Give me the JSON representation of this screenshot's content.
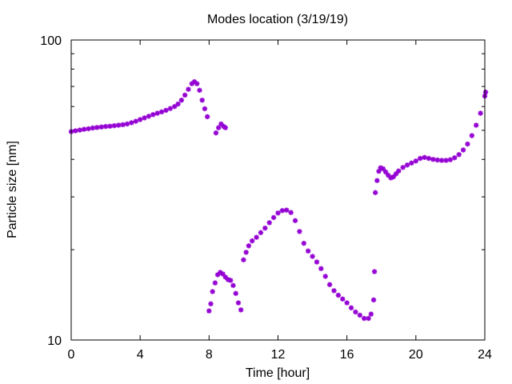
{
  "chart_data": {
    "type": "scatter",
    "title": "Modes location (3/19/19)",
    "xlabel": "Time [hour]",
    "ylabel": "Particle size [nm]",
    "xlim": [
      0,
      24
    ],
    "ylim": [
      10,
      100
    ],
    "yscale": "log",
    "xticks": [
      0,
      4,
      8,
      12,
      16,
      20,
      24
    ],
    "xtick_labels": [
      "0",
      "4",
      "8",
      "12",
      "16",
      "20",
      "24"
    ],
    "yticks": [
      10,
      100
    ],
    "ytick_labels": [
      "10",
      "100"
    ],
    "grid": false,
    "legend": "none",
    "marker_color": "#9400d3",
    "series": [
      {
        "points": [
          [
            0.0,
            49.5
          ],
          [
            0.25,
            49.8
          ],
          [
            0.5,
            50.1
          ],
          [
            0.75,
            50.4
          ],
          [
            1.0,
            50.6
          ],
          [
            1.25,
            50.9
          ],
          [
            1.5,
            51.1
          ],
          [
            1.75,
            51.3
          ],
          [
            2.0,
            51.5
          ],
          [
            2.25,
            51.6
          ],
          [
            2.5,
            51.8
          ],
          [
            2.75,
            52.0
          ],
          [
            3.0,
            52.2
          ],
          [
            3.25,
            52.5
          ],
          [
            3.5,
            53.0
          ],
          [
            3.75,
            53.6
          ],
          [
            4.0,
            54.3
          ],
          [
            4.25,
            55.0
          ],
          [
            4.5,
            55.7
          ],
          [
            4.75,
            56.4
          ],
          [
            5.0,
            57.0
          ],
          [
            5.25,
            57.6
          ],
          [
            5.5,
            58.3
          ],
          [
            5.75,
            59.1
          ],
          [
            6.0,
            60.0
          ],
          [
            6.2,
            61.2
          ],
          [
            6.4,
            63.0
          ],
          [
            6.6,
            65.5
          ],
          [
            6.8,
            68.5
          ],
          [
            7.0,
            71.5
          ],
          [
            7.15,
            72.6
          ],
          [
            7.3,
            71.5
          ],
          [
            7.45,
            68.0
          ],
          [
            7.6,
            63.0
          ],
          [
            7.75,
            59.0
          ],
          [
            7.9,
            55.5
          ],
          [
            8.4,
            49.0
          ],
          [
            8.55,
            51.0
          ],
          [
            8.7,
            52.5
          ],
          [
            8.85,
            51.5
          ],
          [
            8.95,
            51.0
          ],
          [
            8.0,
            12.5
          ],
          [
            8.1,
            13.2
          ],
          [
            8.2,
            14.5
          ],
          [
            8.35,
            15.5
          ],
          [
            8.5,
            16.5
          ],
          [
            8.65,
            16.8
          ],
          [
            8.8,
            16.6
          ],
          [
            8.95,
            16.2
          ],
          [
            9.1,
            15.9
          ],
          [
            9.25,
            15.8
          ],
          [
            9.4,
            15.2
          ],
          [
            9.55,
            14.3
          ],
          [
            9.7,
            13.3
          ],
          [
            9.85,
            12.6
          ],
          [
            10.0,
            18.5
          ],
          [
            10.15,
            19.6
          ],
          [
            10.3,
            20.6
          ],
          [
            10.5,
            21.4
          ],
          [
            10.75,
            22.0
          ],
          [
            11.0,
            22.8
          ],
          [
            11.25,
            23.6
          ],
          [
            11.5,
            24.6
          ],
          [
            11.75,
            25.6
          ],
          [
            12.0,
            26.5
          ],
          [
            12.25,
            27.0
          ],
          [
            12.5,
            27.1
          ],
          [
            12.75,
            26.6
          ],
          [
            13.0,
            25.0
          ],
          [
            13.25,
            23.0
          ],
          [
            13.5,
            21.0
          ],
          [
            13.75,
            19.8
          ],
          [
            14.0,
            19.0
          ],
          [
            14.25,
            18.2
          ],
          [
            14.5,
            17.3
          ],
          [
            14.75,
            16.3
          ],
          [
            15.0,
            15.3
          ],
          [
            15.25,
            14.6
          ],
          [
            15.5,
            14.1
          ],
          [
            15.75,
            13.7
          ],
          [
            16.0,
            13.3
          ],
          [
            16.25,
            12.8
          ],
          [
            16.5,
            12.4
          ],
          [
            16.75,
            12.1
          ],
          [
            17.0,
            11.8
          ],
          [
            17.25,
            11.8
          ],
          [
            17.4,
            12.2
          ],
          [
            17.55,
            13.6
          ],
          [
            17.6,
            16.9
          ],
          [
            17.65,
            31.0
          ],
          [
            17.75,
            34.0
          ],
          [
            17.85,
            36.5
          ],
          [
            17.95,
            37.5
          ],
          [
            18.1,
            37.2
          ],
          [
            18.25,
            36.3
          ],
          [
            18.4,
            35.4
          ],
          [
            18.55,
            34.7
          ],
          [
            18.7,
            35.0
          ],
          [
            18.85,
            35.8
          ],
          [
            19.0,
            36.6
          ],
          [
            19.25,
            37.6
          ],
          [
            19.5,
            38.3
          ],
          [
            19.75,
            38.9
          ],
          [
            20.0,
            39.5
          ],
          [
            20.25,
            40.3
          ],
          [
            20.5,
            40.6
          ],
          [
            20.75,
            40.3
          ],
          [
            21.0,
            40.0
          ],
          [
            21.25,
            39.8
          ],
          [
            21.5,
            39.7
          ],
          [
            21.75,
            39.7
          ],
          [
            22.0,
            39.9
          ],
          [
            22.25,
            40.5
          ],
          [
            22.5,
            41.5
          ],
          [
            22.75,
            43.0
          ],
          [
            23.0,
            45.0
          ],
          [
            23.25,
            48.0
          ],
          [
            23.5,
            52.0
          ],
          [
            23.75,
            57.0
          ],
          [
            24.0,
            65.0
          ],
          [
            24.05,
            67.0
          ]
        ]
      }
    ]
  }
}
